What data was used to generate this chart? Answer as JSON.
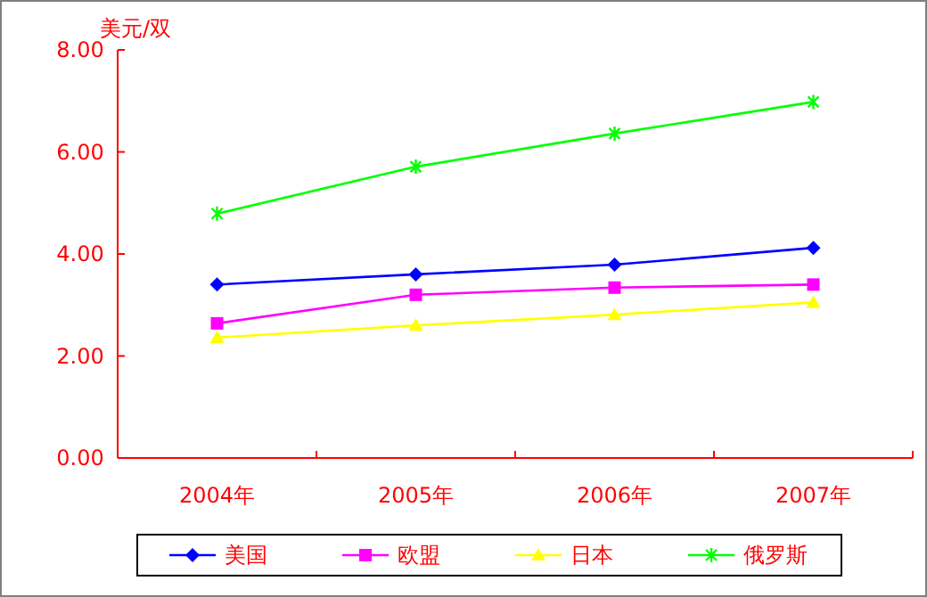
{
  "chart_data": {
    "type": "line",
    "ylabel": "美元/双",
    "categories": [
      "2004年",
      "2005年",
      "2006年",
      "2007年"
    ],
    "ylim": [
      0,
      8
    ],
    "yticks": [
      {
        "value": 0,
        "label": "0.00"
      },
      {
        "value": 2,
        "label": "2.00"
      },
      {
        "value": 4,
        "label": "4.00"
      },
      {
        "value": 6,
        "label": "6.00"
      },
      {
        "value": 8,
        "label": "8.00"
      }
    ],
    "grid": false,
    "legend": "bottom",
    "series": [
      {
        "name": "美国",
        "color": "#0000ff",
        "marker": "diamond",
        "values": [
          3.4,
          3.6,
          3.79,
          4.12
        ]
      },
      {
        "name": "欧盟",
        "color": "#ff00ff",
        "marker": "square",
        "values": [
          2.64,
          3.2,
          3.34,
          3.4
        ]
      },
      {
        "name": "日本",
        "color": "#ffff00",
        "marker": "triangle",
        "values": [
          2.36,
          2.6,
          2.81,
          3.05
        ]
      },
      {
        "name": "俄罗斯",
        "color": "#00ff00",
        "marker": "cross",
        "values": [
          4.79,
          5.71,
          6.36,
          6.98
        ]
      }
    ]
  }
}
